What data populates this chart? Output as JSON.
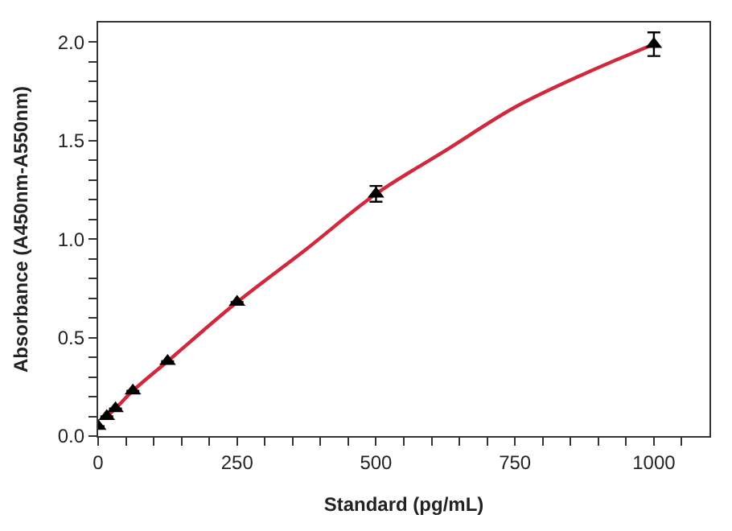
{
  "chart_data": {
    "type": "scatter",
    "xlabel": "Standard (pg/mL)",
    "ylabel": "Absorbance (A450nm-A550nm)",
    "xlim": [
      0,
      1100
    ],
    "ylim": [
      0,
      2.1
    ],
    "xticks": [
      0,
      {
        "value": 50,
        "label": null
      },
      {
        "value": 100,
        "label": null
      },
      {
        "value": 150,
        "label": null
      },
      {
        "value": 200,
        "label": null
      },
      250,
      {
        "value": 300,
        "label": null
      },
      {
        "value": 350,
        "label": null
      },
      {
        "value": 400,
        "label": null
      },
      {
        "value": 450,
        "label": null
      },
      500,
      {
        "value": 550,
        "label": null
      },
      {
        "value": 600,
        "label": null
      },
      {
        "value": 650,
        "label": null
      },
      {
        "value": 700,
        "label": null
      },
      750,
      {
        "value": 800,
        "label": null
      },
      {
        "value": 850,
        "label": null
      },
      {
        "value": 900,
        "label": null
      },
      {
        "value": 950,
        "label": null
      },
      1000,
      {
        "value": 1050,
        "label": null
      }
    ],
    "yticks": [
      {
        "value": 0,
        "label": "0.0"
      },
      {
        "value": 0.1,
        "label": null
      },
      {
        "value": 0.2,
        "label": null
      },
      {
        "value": 0.3,
        "label": null
      },
      {
        "value": 0.4,
        "label": null
      },
      0.5,
      {
        "value": 0.6,
        "label": null
      },
      {
        "value": 0.7,
        "label": null
      },
      {
        "value": 0.8,
        "label": null
      },
      {
        "value": 0.9,
        "label": null
      },
      {
        "value": 1,
        "label": "1.0"
      },
      {
        "value": 1.1,
        "label": null
      },
      {
        "value": 1.2,
        "label": null
      },
      {
        "value": 1.3,
        "label": null
      },
      {
        "value": 1.4,
        "label": null
      },
      1.5,
      {
        "value": 1.6,
        "label": null
      },
      {
        "value": 1.7,
        "label": null
      },
      {
        "value": 1.8,
        "label": null
      },
      {
        "value": 1.9,
        "label": null
      },
      {
        "value": 2,
        "label": "2.0"
      }
    ],
    "marker": "triangle",
    "series": [
      {
        "type": "line",
        "marker": "none",
        "color": "#d0283c",
        "x": [
          15.6,
          31.25,
          62.5,
          125,
          250,
          375,
          500,
          625,
          750,
          875,
          1000
        ],
        "values": [
          0.1,
          0.14,
          0.23,
          0.38,
          0.68,
          0.95,
          1.23,
          1.45,
          1.67,
          1.84,
          1.99
        ]
      },
      {
        "color": "#000000",
        "x": [
          0,
          15.6,
          31.25,
          62.5,
          125,
          250,
          500,
          1000
        ],
        "values": [
          0.05,
          0.1,
          0.14,
          0.23,
          0.38,
          0.68,
          1.23,
          1.99
        ],
        "errors": [
          null,
          null,
          null,
          null,
          null,
          null,
          0.04,
          0.06
        ]
      }
    ]
  }
}
